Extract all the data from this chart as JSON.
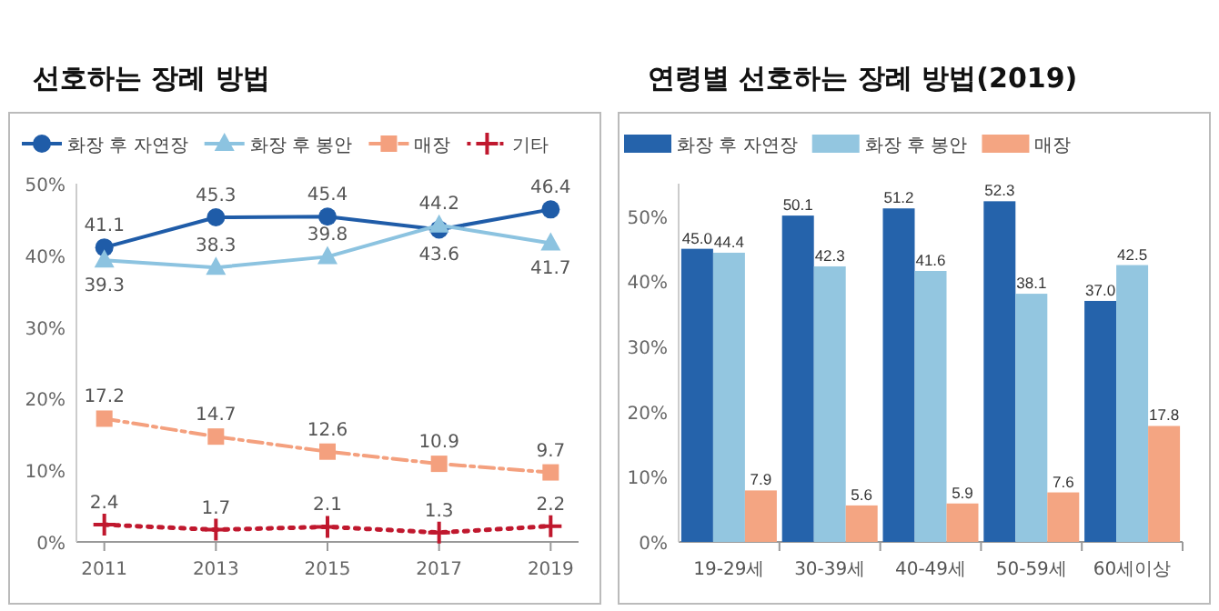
{
  "chart_data": [
    {
      "type": "line",
      "title": "선호하는 장례 방법",
      "x": [
        2011,
        2013,
        2015,
        2017,
        2019
      ],
      "xlim": [
        2010.5,
        2019.5
      ],
      "xticks": [
        2011,
        2013,
        2015,
        2017,
        2019
      ],
      "ylim": [
        0,
        50
      ],
      "yticks": [
        {
          "value": 0,
          "label": "0%"
        },
        {
          "value": 10,
          "label": "10%"
        },
        {
          "value": 20,
          "label": "20%"
        },
        {
          "value": 30,
          "label": "30%"
        },
        {
          "value": 40,
          "label": "40%"
        },
        {
          "value": 50,
          "label": "50%"
        }
      ],
      "legend": "top",
      "data_labels": true,
      "series": [
        {
          "name": "화장 후 자연장",
          "color": "#1f5ca8",
          "marker": "circle",
          "line_style": "solid",
          "values": [
            41.1,
            45.3,
            45.4,
            43.6,
            46.4
          ]
        },
        {
          "name": "화장 후 봉안",
          "color": "#8cc3e0",
          "marker": "triangle",
          "line_style": "solid",
          "values": [
            39.3,
            38.3,
            39.8,
            44.2,
            41.7
          ]
        },
        {
          "name": "매장",
          "color": "#f4a07e",
          "marker": "square",
          "line_style": "dashed",
          "values": [
            17.2,
            14.7,
            12.6,
            10.9,
            9.7
          ]
        },
        {
          "name": "기타",
          "color": "#c0182e",
          "marker": "cross",
          "line_style": "dotted",
          "values": [
            2.4,
            1.7,
            2.1,
            1.3,
            2.2
          ]
        }
      ]
    },
    {
      "type": "bar",
      "title": "연령별 선호하는 장례 방법(2019)",
      "categories": [
        "19-29세",
        "30-39세",
        "40-49세",
        "50-59세",
        "60세이상"
      ],
      "ylim": [
        0,
        55
      ],
      "yticks": [
        {
          "value": 0,
          "label": "0%"
        },
        {
          "value": 10,
          "label": "10%"
        },
        {
          "value": 20,
          "label": "20%"
        },
        {
          "value": 30,
          "label": "30%"
        },
        {
          "value": 40,
          "label": "40%"
        },
        {
          "value": 50,
          "label": "50%"
        }
      ],
      "legend": "top",
      "series": [
        {
          "name": "화장 후 자연장",
          "color": "#2563ab",
          "values": [
            45.0,
            50.1,
            51.2,
            52.3,
            37.0
          ],
          "value_labels": [
            "45.0",
            "50.1",
            "51.2",
            "52.3",
            "37.0"
          ]
        },
        {
          "name": "화장 후 봉안",
          "color": "#93c6e0",
          "values": [
            44.4,
            42.3,
            41.6,
            38.1,
            42.5
          ],
          "value_labels": [
            "44.4",
            "42.3",
            "41.6",
            "38.1",
            "42.5"
          ]
        },
        {
          "name": "매장",
          "color": "#f4a582",
          "values": [
            7.9,
            5.6,
            5.9,
            7.6,
            17.8
          ],
          "value_labels": [
            "7.9",
            "5.6",
            "5.9",
            "7.6",
            "17.8"
          ]
        }
      ]
    }
  ]
}
